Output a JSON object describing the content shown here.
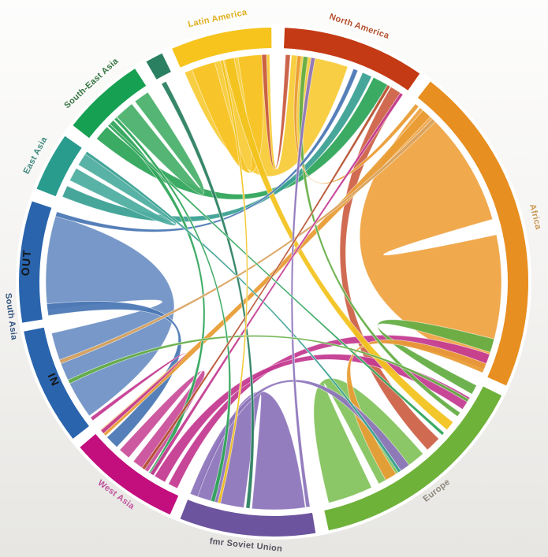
{
  "figure": {
    "description_labels": {
      "out": "OUT",
      "in": "IN"
    }
  },
  "chart_data": {
    "type": "chord",
    "title": "",
    "legend_position": "none",
    "grid": false,
    "angle_convention": "degrees clockwise from top (12 o'clock)",
    "background_inner": "#ffffff",
    "regions": [
      {
        "id": "latin-america",
        "label": "Latin America",
        "band_color": "#f6c41c",
        "label_color": "#dfaf1e",
        "arcs": [
          [
            336.5,
            359.5
          ]
        ],
        "label_angle": 348
      },
      {
        "id": "north-america",
        "label": "North America",
        "band_color": "#c43a14",
        "label_color": "#b5502e",
        "arcs": [
          [
            2.5,
            35
          ]
        ],
        "label_angle": 18.5
      },
      {
        "id": "africa",
        "label": "Africa",
        "band_color": "#e88f21",
        "label_color": "#cb9754",
        "arcs": [
          [
            38,
            114
          ]
        ],
        "label_angle": 76
      },
      {
        "id": "europe",
        "label": "Europe",
        "band_color": "#6fb23a",
        "label_color": "#8b8578",
        "arcs": [
          [
            116.5,
            167.5
          ]
        ],
        "label_angle": 142
      },
      {
        "id": "fmr-soviet-union",
        "label": "fmr Soviet Union",
        "band_color": "#6d549e",
        "label_color": "#56525e",
        "arcs": [
          [
            170.5,
            201.5
          ]
        ],
        "label_angle": 186
      },
      {
        "id": "west-asia",
        "label": "West Asia",
        "band_color": "#c30e7e",
        "label_color": "#c0549c",
        "arcs": [
          [
            204,
            229.5
          ]
        ],
        "label_angle": 216.5
      },
      {
        "id": "south-asia",
        "label": "South Asia",
        "band_color": "#2a64ad",
        "label_color": "#35567f",
        "arcs": [
          [
            232,
            258.8
          ],
          [
            260.8,
            288.5
          ]
        ],
        "label_angle": 262.5
      },
      {
        "id": "east-asia",
        "label": "East Asia",
        "band_color": "#2a9c8e",
        "label_color": "#41897f",
        "arcs": [
          [
            291.5,
            305
          ]
        ],
        "label_angle": 298
      },
      {
        "id": "south-east-asia",
        "label": "South-East Asia",
        "band_color": "#16a052",
        "label_color": "#377545",
        "arcs": [
          [
            308,
            327
          ]
        ],
        "label_angle": 317.5
      },
      {
        "id": "minor-region",
        "label": "",
        "band_color": "#2a8060",
        "label_color": "#2a8060",
        "arcs": [
          [
            330,
            334
          ]
        ],
        "label_angle": 332
      }
    ],
    "direction_labels": [
      {
        "id": "out",
        "text": "OUT",
        "angle": 274.5,
        "radius": 310
      },
      {
        "id": "in",
        "text": "IN",
        "angle": 246,
        "radius": 310
      }
    ],
    "flows": [
      {
        "from": "africa",
        "to": "africa",
        "s": [
          40,
          74
        ],
        "t": [
          78,
          112
        ],
        "color": "#efa442"
      },
      {
        "from": "latin-america",
        "to": "north-america",
        "s": [
          337,
          359
        ],
        "t": [
          4.5,
          19
        ],
        "color": "#f8cc38"
      },
      {
        "from": "south-asia",
        "to": "south-asia",
        "s": [
          263,
          287
        ],
        "t": [
          234,
          257
        ],
        "color": "#6e92c5"
      },
      {
        "from": "fmr-soviet-union",
        "to": "fmr-soviet-union",
        "s": [
          172,
          185.5
        ],
        "t": [
          187.5,
          200
        ],
        "color": "#8d75bb"
      },
      {
        "from": "europe",
        "to": "europe",
        "s": [
          139,
          152.5
        ],
        "t": [
          154.5,
          166
        ],
        "color": "#84c35c"
      },
      {
        "from": "latin-america",
        "to": "latin-america",
        "s": [
          339,
          345
        ],
        "t": [
          351,
          357
        ],
        "color": "#f6c527"
      },
      {
        "from": "north-america",
        "to": "europe",
        "s": [
          31,
          34.5
        ],
        "t": [
          133.5,
          137.5
        ],
        "color": "#cd6247"
      },
      {
        "from": "west-asia",
        "to": "africa",
        "s": [
          205,
          207.5
        ],
        "t": [
          108.5,
          112.5
        ],
        "color": "#c43a90"
      },
      {
        "from": "west-asia",
        "to": "europe",
        "s": [
          208.5,
          211.5
        ],
        "t": [
          120.5,
          124
        ],
        "color": "#c43a90"
      },
      {
        "from": "europe",
        "to": "africa",
        "s": [
          117,
          119.5
        ],
        "t": [
          104.5,
          108
        ],
        "color": "#64ad44"
      },
      {
        "from": "south-east-asia",
        "to": "north-america",
        "s": [
          309,
          313
        ],
        "t": [
          26,
          30
        ],
        "color": "#2fa559"
      },
      {
        "from": "east-asia",
        "to": "north-america",
        "s": [
          292,
          295
        ],
        "t": [
          23,
          25.5
        ],
        "color": "#3aa093"
      },
      {
        "from": "south-asia",
        "to": "west-asia",
        "s": [
          261.5,
          264.5
        ],
        "t": [
          223.5,
          227
        ],
        "color": "#4a77b4"
      },
      {
        "from": "africa",
        "to": "europe",
        "s": [
          111,
          113.5
        ],
        "t": [
          147.5,
          150.5
        ],
        "color": "#e99c34"
      },
      {
        "from": "fmr-soviet-union",
        "to": "europe",
        "s": [
          199.5,
          201.5
        ],
        "t": [
          143.5,
          146
        ],
        "color": "#8d75bb"
      },
      {
        "from": "south-east-asia",
        "to": "south-east-asia",
        "s": [
          316.5,
          321.5
        ],
        "t": [
          322.5,
          326.5
        ],
        "color": "#49b06b"
      },
      {
        "from": "west-asia",
        "to": "west-asia",
        "s": [
          213.5,
          218
        ],
        "t": [
          219.5,
          222.5
        ],
        "color": "#ca4f9a"
      },
      {
        "from": "east-asia",
        "to": "east-asia",
        "s": [
          296.5,
          300
        ],
        "t": [
          301,
          304.5
        ],
        "color": "#4fada0"
      },
      {
        "from": "latin-america",
        "to": "europe",
        "s": [
          347.5,
          350
        ],
        "t": [
          128,
          130.5
        ],
        "color": "#f2c21e"
      },
      {
        "from": "africa",
        "to": "west-asia",
        "s": [
          41,
          43.5
        ],
        "t": [
          227.5,
          229.5
        ],
        "color": "#e99c34"
      },
      {
        "from": "north-america",
        "to": "latin-america",
        "s": [
          3,
          4.2
        ],
        "t": [
          357,
          358.2
        ],
        "color": "#c85b40"
      },
      {
        "from": "europe",
        "to": "north-america",
        "s": [
          125,
          126.2
        ],
        "t": [
          7.5,
          8.7
        ],
        "color": "#64ad44"
      },
      {
        "from": "africa",
        "to": "north-america",
        "s": [
          38.5,
          39.6
        ],
        "t": [
          6,
          7
        ],
        "color": "#e99c34"
      },
      {
        "from": "south-asia",
        "to": "north-america",
        "s": [
          286.8,
          288
        ],
        "t": [
          20.5,
          21.7
        ],
        "color": "#4a77b4"
      },
      {
        "from": "west-asia",
        "to": "south-asia",
        "s": [
          228.3,
          229.3
        ],
        "t": [
          232.5,
          233.5
        ],
        "color": "#c43a90"
      },
      {
        "from": "south-east-asia",
        "to": "west-asia",
        "s": [
          314,
          315.3
        ],
        "t": [
          212,
          213.2
        ],
        "color": "#2fa559"
      },
      {
        "from": "east-asia",
        "to": "europe",
        "s": [
          304.2,
          305
        ],
        "t": [
          146,
          146.8
        ],
        "color": "#3aa093"
      },
      {
        "from": "minor-region",
        "to": "fmr-soviet-union",
        "s": [
          330.5,
          331.8
        ],
        "t": [
          186,
          187
        ],
        "color": "#2a8060"
      },
      {
        "from": "africa",
        "to": "south-asia",
        "s": [
          44.2,
          45.2
        ],
        "t": [
          249,
          250
        ],
        "color": "#d9a35e"
      },
      {
        "from": "fmr-soviet-union",
        "to": "north-america",
        "s": [
          170.8,
          171.8
        ],
        "t": [
          9.5,
          10.5
        ],
        "color": "#8d75bb"
      },
      {
        "from": "west-asia",
        "to": "north-america",
        "s": [
          211.8,
          212.8
        ],
        "t": [
          33.8,
          34.6
        ],
        "color": "#c43a90"
      },
      {
        "from": "south-east-asia",
        "to": "europe",
        "s": [
          313.3,
          314
        ],
        "t": [
          131.5,
          132.3
        ],
        "color": "#2fa559"
      },
      {
        "from": "europe",
        "to": "south-asia",
        "s": [
          121,
          121.8
        ],
        "t": [
          243.5,
          244.5
        ],
        "color": "#64ad44"
      },
      {
        "from": "south-east-asia",
        "to": "fmr-soviet-union",
        "s": [
          315.6,
          316.4
        ],
        "t": [
          195,
          196
        ],
        "color": "#2fa559"
      },
      {
        "from": "north-america",
        "to": "west-asia",
        "s": [
          30,
          30.8
        ],
        "t": [
          214.5,
          215.3
        ],
        "color": "#b5502e"
      },
      {
        "from": "latin-america",
        "to": "fmr-soviet-union",
        "s": [
          346.5,
          347.2
        ],
        "t": [
          193.5,
          194.2
        ],
        "color": "#f2c21e"
      }
    ]
  }
}
